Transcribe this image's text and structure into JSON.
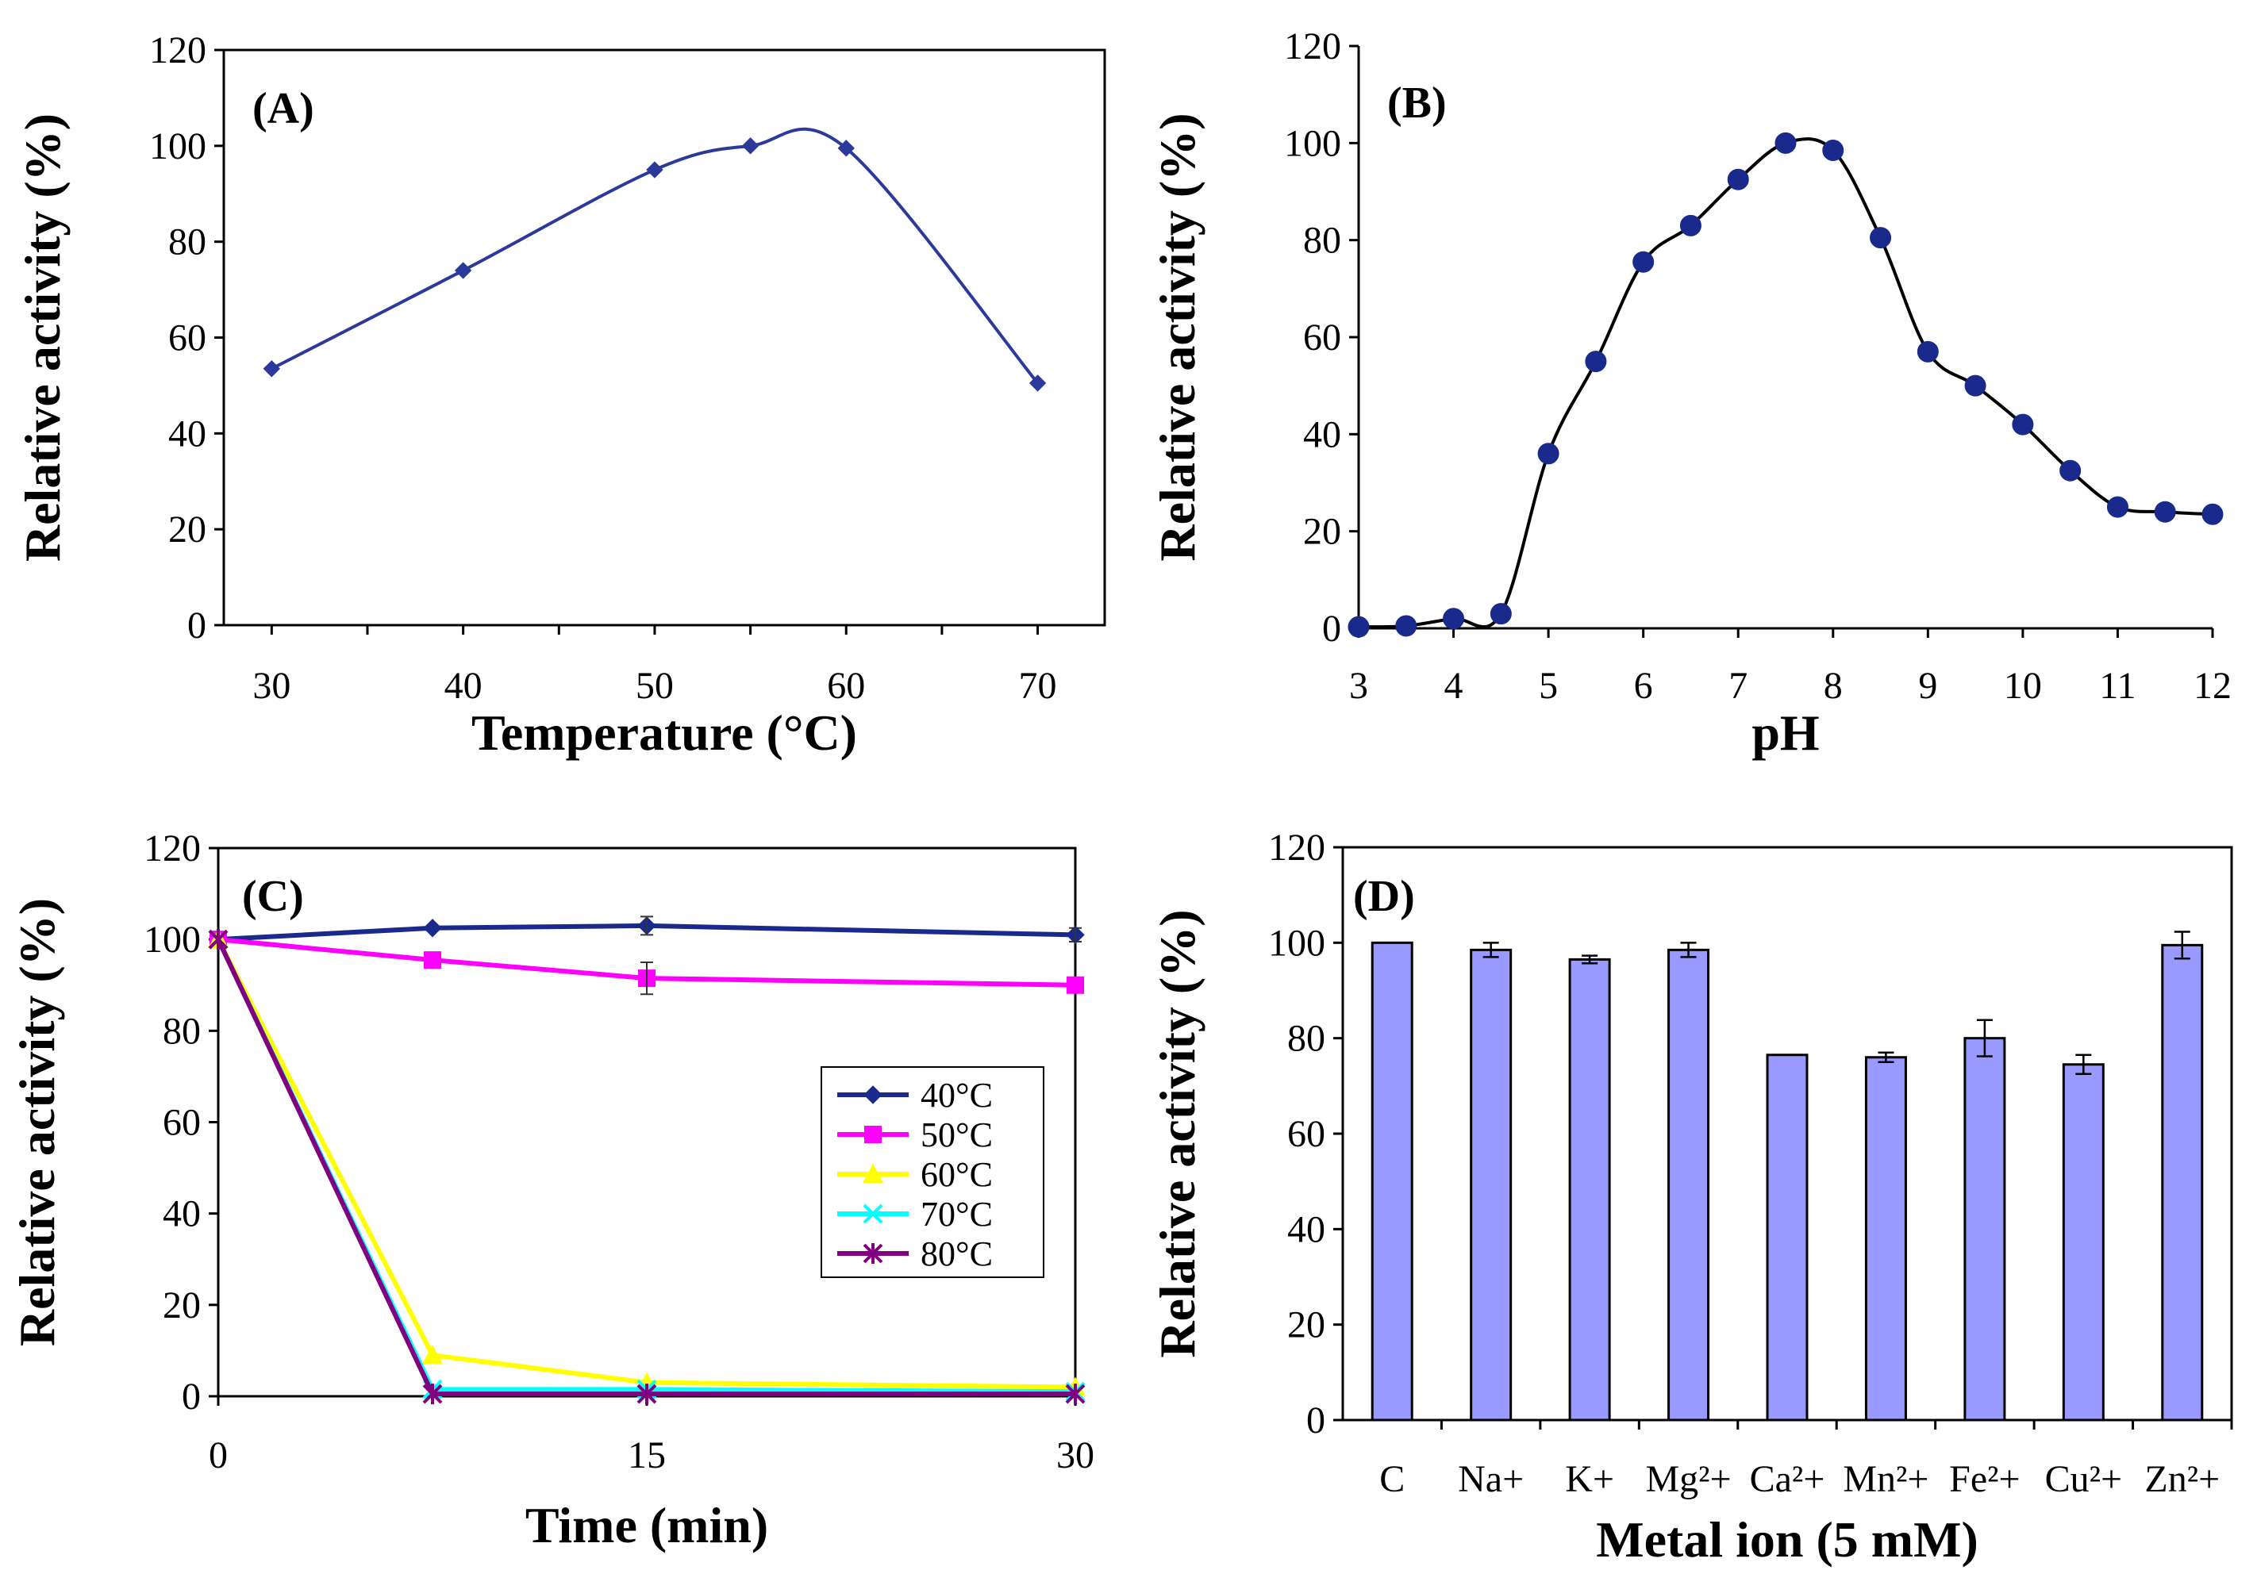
{
  "chart_data": [
    {
      "id": "A",
      "type": "line",
      "panel_label": "(A)",
      "xlabel": "Temperature (°C)",
      "ylabel": "Relative activity (%)",
      "xlim": [
        27.5,
        73.5
      ],
      "ylim": [
        0,
        120
      ],
      "xticks": [
        30,
        40,
        50,
        60,
        70
      ],
      "yticks": [
        0,
        20,
        40,
        60,
        80,
        100,
        120
      ],
      "grid": false,
      "series": [
        {
          "name": "activity",
          "color": "#2B3A9A",
          "marker": "diamond",
          "x": [
            30,
            40,
            50,
            55,
            60,
            70
          ],
          "y": [
            53.5,
            74,
            95,
            100,
            99.5,
            50.5
          ]
        }
      ]
    },
    {
      "id": "B",
      "type": "line",
      "panel_label": "(B)",
      "xlabel": "pH",
      "ylabel": "Relative activity (%)",
      "xlim": [
        3,
        12
      ],
      "ylim": [
        0,
        120
      ],
      "xticks": [
        3,
        4,
        5,
        6,
        7,
        8,
        9,
        10,
        11,
        12
      ],
      "yticks": [
        0,
        20,
        40,
        60,
        80,
        100,
        120
      ],
      "grid": false,
      "series": [
        {
          "name": "activity",
          "color": "#000000",
          "marker": "circle",
          "marker_color": "#1A2A8C",
          "x": [
            3,
            3.5,
            4,
            4.5,
            5,
            5.5,
            6,
            6.5,
            7,
            7.5,
            8,
            8.5,
            9,
            9.5,
            10,
            10.5,
            11,
            11.5,
            12
          ],
          "y": [
            0.3,
            0.5,
            2,
            3,
            36,
            55,
            75.5,
            83,
            92.5,
            100,
            98.5,
            80.5,
            57,
            50,
            42,
            32.5,
            25,
            24,
            23.5
          ]
        }
      ]
    },
    {
      "id": "C",
      "type": "line",
      "panel_label": "(C)",
      "xlabel": "Time (min)",
      "ylabel": "Relative activity (%)",
      "xlim": [
        0,
        30
      ],
      "ylim": [
        0,
        120
      ],
      "xticks": [
        0,
        15,
        30
      ],
      "yticks": [
        0,
        20,
        40,
        60,
        80,
        100,
        120
      ],
      "grid": false,
      "legend": "right",
      "series": [
        {
          "name": "40°C",
          "color": "#1A2A8C",
          "marker": "diamond",
          "x": [
            0,
            7.5,
            15,
            30
          ],
          "y": [
            100,
            102.5,
            103,
            101
          ]
        },
        {
          "name": "50°C",
          "color": "#FF00FF",
          "marker": "square",
          "x": [
            0,
            7.5,
            15,
            30
          ],
          "y": [
            100,
            95.5,
            91.5,
            90
          ]
        },
        {
          "name": "60°C",
          "color": "#FFFF00",
          "marker": "triangle",
          "x": [
            0,
            7.5,
            15,
            30
          ],
          "y": [
            100,
            9,
            3,
            2
          ]
        },
        {
          "name": "70°C",
          "color": "#00FFFF",
          "marker": "x",
          "x": [
            0,
            7.5,
            15,
            30
          ],
          "y": [
            100,
            1.5,
            1.5,
            1
          ]
        },
        {
          "name": "80°C",
          "color": "#800080",
          "marker": "star",
          "x": [
            0,
            7.5,
            15,
            30
          ],
          "y": [
            100,
            0.5,
            0.5,
            0.5
          ]
        }
      ]
    },
    {
      "id": "D",
      "type": "bar",
      "panel_label": "(D)",
      "xlabel": "Metal ion (5 mM)",
      "ylabel": "Relative activity (%)",
      "ylim": [
        0,
        120
      ],
      "yticks": [
        0,
        20,
        40,
        60,
        80,
        100,
        120
      ],
      "grid": false,
      "bar_color": "#9999FF",
      "categories": [
        "C",
        "Na+",
        "K+",
        "Mg²+",
        "Ca²+",
        "Mn²+",
        "Fe²+",
        "Cu²+",
        "Zn²+"
      ],
      "values": [
        100,
        98.5,
        96.5,
        98.5,
        76.5,
        76,
        80,
        74.5,
        99.5
      ],
      "errors": [
        0,
        1.5,
        0.8,
        1.5,
        0,
        1,
        3.8,
        2,
        2.8
      ]
    }
  ]
}
